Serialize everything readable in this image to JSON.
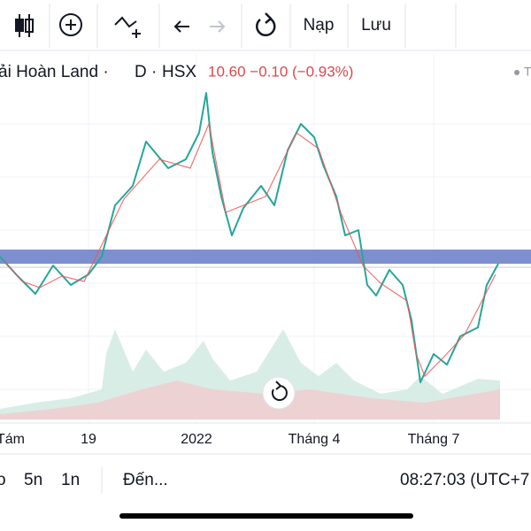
{
  "toolbar": {
    "load": "Nạp",
    "save": "Lưu"
  },
  "header": {
    "symbol": "ải Hoàn Land ·",
    "interval": "D ·",
    "exchange": "HSX",
    "price": "10.60 −0.10 (−0.93%)",
    "status": "T"
  },
  "x_labels": [
    "Tám",
    "19",
    "2022",
    "Tháng 4",
    "Tháng 7"
  ],
  "bottom_bar": {
    "ranges": [
      "o",
      "5n",
      "1n"
    ],
    "goto": "Đến...",
    "time": "08:27:03 (UTC+7"
  }
}
